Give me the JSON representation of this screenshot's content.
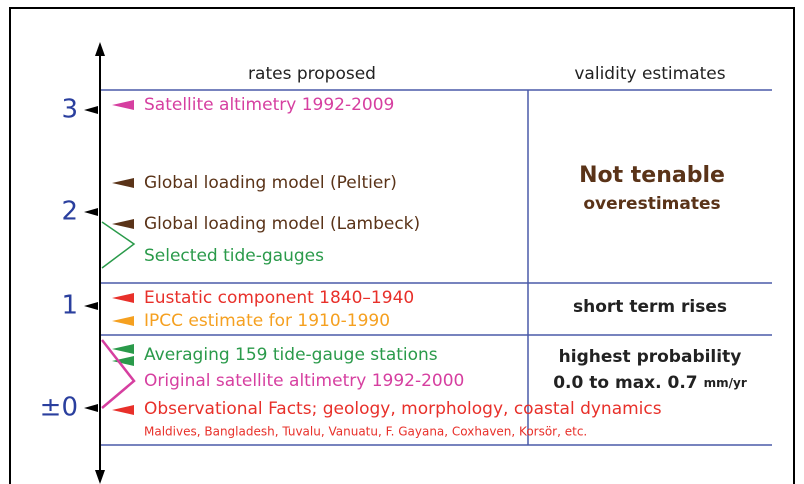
{
  "header": {
    "rates": "rates proposed",
    "validity": "validity estimates"
  },
  "axis_labels": [
    "3",
    "2",
    "1",
    "±0"
  ],
  "entries": [
    "Satellite altimetry 1992-2009",
    "Global loading model (Peltier)",
    "Global loading model (Lambeck)",
    "Selected tide-gauges",
    "Eustatic component 1840–1940",
    "IPCC estimate for 1910-1990",
    "Averaging 159 tide-gauge stations",
    "Original satellite altimetry 1992-2000",
    "Observational Facts; geology, morphology, coastal dynamics",
    "Maldives, Bangladesh, Tuvalu, Vanuatu, F. Gayana, Coxhaven, Korsör, etc."
  ],
  "validity": {
    "not_tenable": "Not tenable",
    "overestimates": "overestimates",
    "short_term": "short term rises",
    "highest": "highest probability",
    "range": "0.0 to max. 0.7",
    "unit": "mm/yr"
  }
}
